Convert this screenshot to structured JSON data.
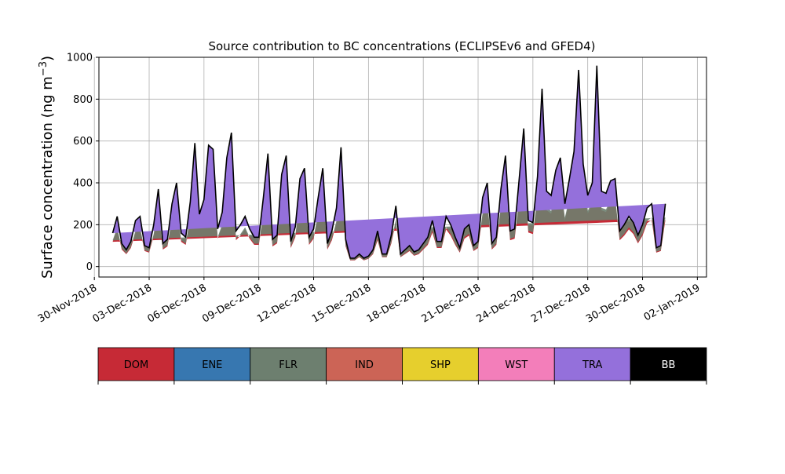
{
  "chart_data": {
    "type": "area",
    "title": "Source contribution to BC concentrations (ECLIPSEv6 and GFED4)",
    "ylabel_main": "Surface concentration (ng m",
    "ylabel_sup": "−3",
    "ylabel_close": ")",
    "xlabel": "",
    "ylim": [
      -50,
      1000
    ],
    "xlim_dates": [
      "2018-11-30T06:00",
      "2019-01-02T12:00"
    ],
    "yticks": [
      0,
      200,
      400,
      600,
      800,
      1000
    ],
    "xticks": [
      {
        "date": "2018-11-30",
        "label": "30-Nov-2018"
      },
      {
        "date": "2018-12-03",
        "label": "03-Dec-2018"
      },
      {
        "date": "2018-12-06",
        "label": "06-Dec-2018"
      },
      {
        "date": "2018-12-09",
        "label": "09-Dec-2018"
      },
      {
        "date": "2018-12-12",
        "label": "12-Dec-2018"
      },
      {
        "date": "2018-12-15",
        "label": "15-Dec-2018"
      },
      {
        "date": "2018-12-18",
        "label": "18-Dec-2018"
      },
      {
        "date": "2018-12-21",
        "label": "21-Dec-2018"
      },
      {
        "date": "2018-12-24",
        "label": "24-Dec-2018"
      },
      {
        "date": "2018-12-27",
        "label": "27-Dec-2018"
      },
      {
        "date": "2018-12-30",
        "label": "30-Dec-2018"
      },
      {
        "date": "2019-01-02",
        "label": "02-Jan-2019"
      }
    ],
    "grid": true,
    "legend": {
      "placement": "below",
      "entries": [
        {
          "name": "DOM",
          "color": "#c62a36"
        },
        {
          "name": "ENE",
          "color": "#3777b0"
        },
        {
          "name": "FLR",
          "color": "#6d7f6f"
        },
        {
          "name": "IND",
          "color": "#cc6456"
        },
        {
          "name": "SHP",
          "color": "#e6cf2d"
        },
        {
          "name": "WST",
          "color": "#f37eba"
        },
        {
          "name": "TRA",
          "color": "#9470db"
        },
        {
          "name": "BB",
          "color": "#000000"
        }
      ]
    },
    "series": {
      "x": [
        "2018-12-01T00:00",
        "2018-12-01T06:00",
        "2018-12-01T12:00",
        "2018-12-01T18:00",
        "2018-12-02T00:00",
        "2018-12-02T06:00",
        "2018-12-02T12:00",
        "2018-12-02T18:00",
        "2018-12-03T00:00",
        "2018-12-03T06:00",
        "2018-12-03T12:00",
        "2018-12-03T18:00",
        "2018-12-04T00:00",
        "2018-12-04T06:00",
        "2018-12-04T12:00",
        "2018-12-04T18:00",
        "2018-12-05T00:00",
        "2018-12-05T06:00",
        "2018-12-05T12:00",
        "2018-12-05T18:00",
        "2018-12-06T00:00",
        "2018-12-06T06:00",
        "2018-12-06T12:00",
        "2018-12-06T18:00",
        "2018-12-07T00:00",
        "2018-12-07T06:00",
        "2018-12-07T12:00",
        "2018-12-07T18:00",
        "2018-12-08T00:00",
        "2018-12-08T06:00",
        "2018-12-08T12:00",
        "2018-12-08T18:00",
        "2018-12-09T00:00",
        "2018-12-09T06:00",
        "2018-12-09T12:00",
        "2018-12-09T18:00",
        "2018-12-10T00:00",
        "2018-12-10T06:00",
        "2018-12-10T12:00",
        "2018-12-10T18:00",
        "2018-12-11T00:00",
        "2018-12-11T06:00",
        "2018-12-11T12:00",
        "2018-12-11T18:00",
        "2018-12-12T00:00",
        "2018-12-12T06:00",
        "2018-12-12T12:00",
        "2018-12-12T18:00",
        "2018-12-13T00:00",
        "2018-12-13T06:00",
        "2018-12-13T12:00",
        "2018-12-13T18:00",
        "2018-12-14T00:00",
        "2018-12-14T06:00",
        "2018-12-14T12:00",
        "2018-12-14T18:00",
        "2018-12-15T00:00",
        "2018-12-15T06:00",
        "2018-12-15T12:00",
        "2018-12-15T18:00",
        "2018-12-16T00:00",
        "2018-12-16T06:00",
        "2018-12-16T12:00",
        "2018-12-16T18:00",
        "2018-12-17T00:00",
        "2018-12-17T06:00",
        "2018-12-17T12:00",
        "2018-12-17T18:00",
        "2018-12-18T00:00",
        "2018-12-18T06:00",
        "2018-12-18T12:00",
        "2018-12-18T18:00",
        "2018-12-19T00:00",
        "2018-12-19T06:00",
        "2018-12-19T12:00",
        "2018-12-19T18:00",
        "2018-12-20T00:00",
        "2018-12-20T06:00",
        "2018-12-20T12:00",
        "2018-12-20T18:00",
        "2018-12-21T00:00",
        "2018-12-21T06:00",
        "2018-12-21T12:00",
        "2018-12-21T18:00",
        "2018-12-22T00:00",
        "2018-12-22T06:00",
        "2018-12-22T12:00",
        "2018-12-22T18:00",
        "2018-12-23T00:00",
        "2018-12-23T06:00",
        "2018-12-23T12:00",
        "2018-12-23T18:00",
        "2018-12-24T00:00",
        "2018-12-24T06:00",
        "2018-12-24T12:00",
        "2018-12-24T18:00",
        "2018-12-25T00:00",
        "2018-12-25T06:00",
        "2018-12-25T12:00",
        "2018-12-25T18:00",
        "2018-12-26T00:00",
        "2018-12-26T06:00",
        "2018-12-26T12:00",
        "2018-12-26T18:00",
        "2018-12-27T00:00",
        "2018-12-27T06:00",
        "2018-12-27T12:00",
        "2018-12-27T18:00",
        "2018-12-28T00:00",
        "2018-12-28T06:00",
        "2018-12-28T12:00",
        "2018-12-28T18:00",
        "2018-12-29T00:00",
        "2018-12-29T06:00",
        "2018-12-29T12:00",
        "2018-12-29T18:00",
        "2018-12-30T00:00",
        "2018-12-30T06:00",
        "2018-12-30T12:00",
        "2018-12-30T18:00",
        "2018-12-31T00:00",
        "2018-12-31T06:00",
        "2018-12-31T12:00",
        "2018-12-31T18:00",
        "2019-01-01T00:00"
      ],
      "total": [
        160,
        240,
        110,
        80,
        120,
        220,
        240,
        100,
        90,
        200,
        370,
        110,
        130,
        300,
        400,
        160,
        140,
        310,
        590,
        250,
        320,
        580,
        560,
        180,
        260,
        520,
        640,
        170,
        200,
        240,
        180,
        140,
        140,
        330,
        540,
        130,
        150,
        440,
        530,
        120,
        190,
        420,
        470,
        140,
        180,
        330,
        470,
        110,
        170,
        280,
        570,
        130,
        40,
        40,
        60,
        40,
        50,
        80,
        170,
        60,
        60,
        150,
        290,
        60,
        80,
        100,
        70,
        80,
        110,
        140,
        220,
        120,
        120,
        240,
        200,
        140,
        90,
        180,
        200,
        100,
        120,
        330,
        400,
        110,
        140,
        370,
        530,
        170,
        180,
        420,
        660,
        220,
        210,
        430,
        850,
        360,
        340,
        460,
        520,
        300,
        420,
        550,
        940,
        490,
        340,
        400,
        960,
        360,
        350,
        410,
        420,
        170,
        200,
        240,
        210,
        150,
        200,
        280,
        300,
        90,
        100,
        300
      ]
    },
    "tra_share": 0.22
  }
}
